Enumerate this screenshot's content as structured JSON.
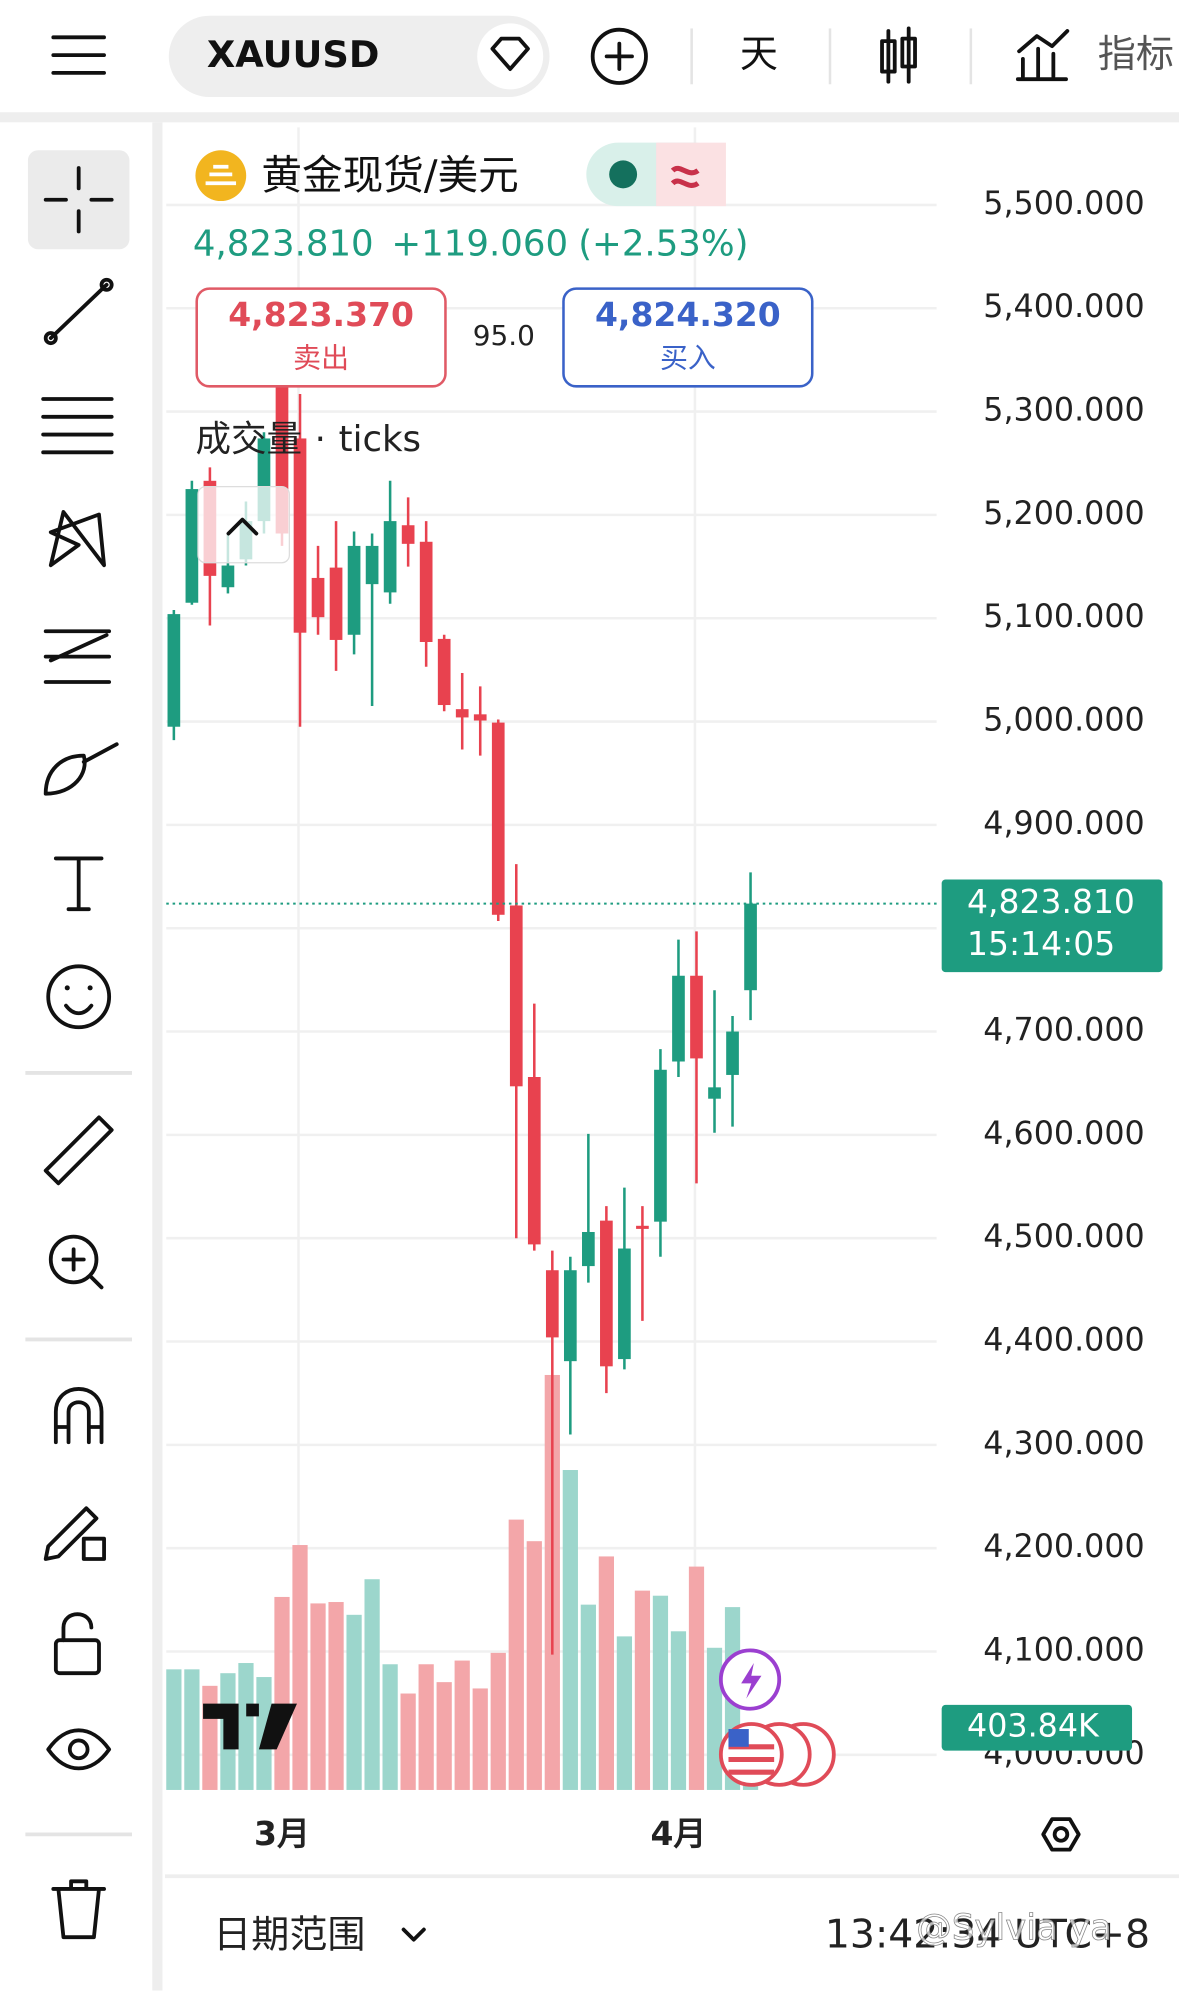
{
  "header": {
    "symbol": "XAUUSD",
    "interval": "天",
    "indicators": "指标"
  },
  "instrument": {
    "name": "黄金现货/美元",
    "price": "4,823.810",
    "change": "+119.060",
    "change_pct": "(+2.53%)",
    "sell_price": "4,823.370",
    "sell_label": "卖出",
    "spread": "95.0",
    "buy_price": "4,824.320",
    "buy_label": "买入",
    "volume_label": "成交量",
    "volume_source": "ticks"
  },
  "footer": {
    "date_range": "日期范围",
    "time": "13:42:34 UTC+8",
    "watermark": "@Sylvia ya"
  },
  "chart_data": {
    "type": "candlestick",
    "categories": [
      null,
      null,
      null,
      null,
      null,
      null,
      "3月",
      null,
      null,
      null,
      null,
      null,
      null,
      null,
      null,
      null,
      null,
      null,
      null,
      null,
      null,
      null,
      null,
      null,
      null,
      null,
      null,
      null,
      "4月",
      null,
      null,
      null,
      null
    ],
    "open": [
      4995,
      5115,
      5233,
      5130,
      5157,
      5194,
      5329,
      5274,
      5139,
      5149,
      5084,
      5133,
      5125,
      5190,
      5174,
      5080,
      5012,
      5007,
      4999,
      4822,
      4656,
      4469,
      4381,
      4473,
      4517,
      4383,
      4512,
      4516,
      4671,
      4754,
      4635,
      4658,
      4740
    ],
    "high": [
      5108,
      5233,
      5246,
      5182,
      5213,
      5280,
      5342,
      5317,
      5170,
      5194,
      5184,
      5182,
      5233,
      5217,
      5194,
      5084,
      5047,
      5034,
      5002,
      4862,
      4727,
      4488,
      4482,
      4601,
      4531,
      4549,
      4531,
      4683,
      4789,
      4797,
      4740,
      4715,
      4854
    ],
    "low": [
      4982,
      5113,
      5093,
      5124,
      5151,
      5182,
      5170,
      4995,
      5084,
      5049,
      5065,
      5015,
      5114,
      5150,
      5053,
      5010,
      4973,
      4967,
      4807,
      4500,
      4488,
      4097,
      4310,
      4457,
      4350,
      4373,
      4420,
      4482,
      4656,
      4553,
      4602,
      4608,
      4711
    ],
    "close": [
      5104,
      5225,
      5141,
      5151,
      5194,
      5274,
      5182,
      5086,
      5101,
      5079,
      5170,
      5170,
      5194,
      5172,
      5077,
      5016,
      5004,
      5001,
      4813,
      4647,
      4494,
      4404,
      4469,
      4506,
      4376,
      4490,
      4509,
      4663,
      4754,
      4674,
      4646,
      4700,
      4823.81
    ],
    "volume": [
      783,
      783,
      676,
      758,
      824,
      733,
      1253,
      1590,
      1211,
      1220,
      1137,
      1368,
      816,
      626,
      816,
      700,
      840,
      659,
      890,
      1755,
      1615,
      2694,
      2077,
      1203,
      1516,
      997,
      1294,
      1261,
      1030,
      1450,
      923,
      1187,
      403.84
    ],
    "ylim": [
      3966,
      5575
    ],
    "yticks": [
      {
        "value": 4000,
        "label": "4,000.000"
      },
      {
        "value": 4100,
        "label": "4,100.000"
      },
      {
        "value": 4200,
        "label": "4,200.000"
      },
      {
        "value": 4300,
        "label": "4,300.000"
      },
      {
        "value": 4400,
        "label": "4,400.000"
      },
      {
        "value": 4500,
        "label": "4,500.000"
      },
      {
        "value": 4600,
        "label": "4,600.000"
      },
      {
        "value": 4700,
        "label": "4,700.000"
      },
      {
        "value": 4800,
        "label": "4,800.000"
      },
      {
        "value": 4900,
        "label": "4,900.000"
      },
      {
        "value": 5000,
        "label": "5,000.000"
      },
      {
        "value": 5100,
        "label": "5,100.000"
      },
      {
        "value": 5200,
        "label": "5,200.000"
      },
      {
        "value": 5300,
        "label": "5,300.000"
      },
      {
        "value": 5400,
        "label": "5,400.000"
      },
      {
        "value": 5500,
        "label": "5,500.000"
      }
    ],
    "volume_lim": [
      0,
      2900
    ],
    "last_price": {
      "value": 4823.81,
      "label": "4,823.810"
    },
    "countdown": "15:14:05",
    "last_volume": {
      "value": 403.84,
      "label": "403.84K"
    },
    "grid": true,
    "up_color": "#1e9c80",
    "down_color": "#e8424f",
    "up_volume_color": "#9cd6cc",
    "down_volume_color": "#f3a6a9"
  }
}
